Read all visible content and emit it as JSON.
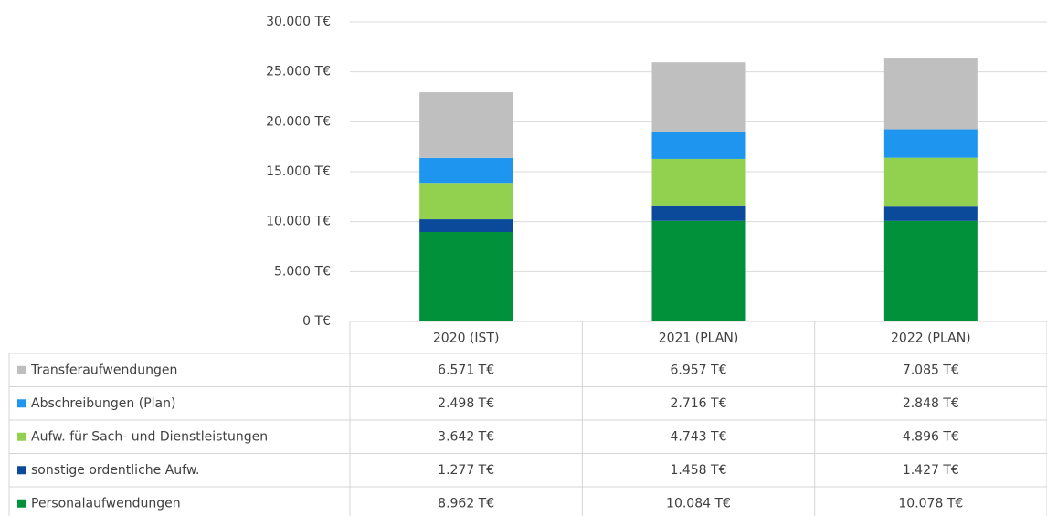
{
  "chart_data": {
    "type": "stacked_bar",
    "categories": [
      "2020 (IST)",
      "2021 (PLAN)",
      "2022 (PLAN)"
    ],
    "series": [
      {
        "name": "Personalaufwendungen",
        "color": "#00913a",
        "values": [
          8962,
          10084,
          10078
        ],
        "value_labels": [
          "8.962 T€",
          "10.084 T€",
          "10.078 T€"
        ]
      },
      {
        "name": "sonstige ordentliche Aufw.",
        "color": "#0b4a9a",
        "values": [
          1277,
          1458,
          1427
        ],
        "value_labels": [
          "1.277 T€",
          "1.458 T€",
          "1.427 T€"
        ]
      },
      {
        "name": "Aufw. für Sach- und Dienstleistungen",
        "color": "#92d050",
        "values": [
          3642,
          4743,
          4896
        ],
        "value_labels": [
          "3.642 T€",
          "4.743 T€",
          "4.896 T€"
        ]
      },
      {
        "name": "Abschreibungen (Plan)",
        "color": "#1e96f0",
        "values": [
          2498,
          2716,
          2848
        ],
        "value_labels": [
          "2.498 T€",
          "2.716 T€",
          "2.848 T€"
        ]
      },
      {
        "name": "Transferaufwendungen",
        "color": "#bfbfbf",
        "values": [
          6571,
          6957,
          7085
        ],
        "value_labels": [
          "6.571 T€",
          "6.957 T€",
          "7.085 T€"
        ]
      }
    ],
    "ylim": [
      0,
      30000
    ],
    "yticks": [
      {
        "value": 0,
        "label": "0 T€"
      },
      {
        "value": 5000,
        "label": "5.000 T€"
      },
      {
        "value": 10000,
        "label": "10.000 T€"
      },
      {
        "value": 15000,
        "label": "15.000 T€"
      },
      {
        "value": 20000,
        "label": "20.000 T€"
      },
      {
        "value": 25000,
        "label": "25.000 T€"
      },
      {
        "value": 30000,
        "label": "30.000 T€"
      }
    ],
    "grid": true
  }
}
